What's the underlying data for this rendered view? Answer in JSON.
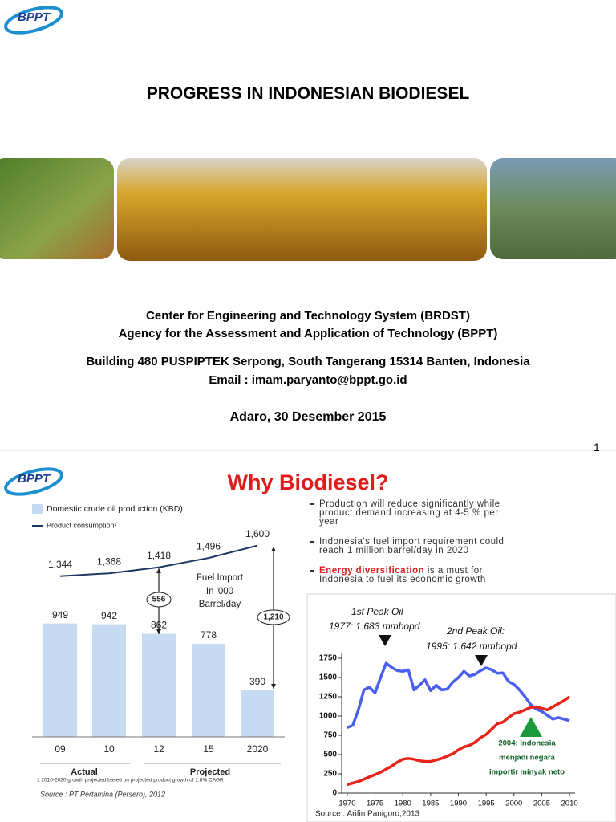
{
  "slide1": {
    "logo": "BPPT",
    "title": "PROGRESS IN INDONESIAN BIODIESEL",
    "lines": [
      "Center for Engineering and Technology System (BRDST)",
      "Agency for the Assessment and Application of Technology (BPPT)",
      "Building 480  PUSPIPTEK  Serpong, South Tangerang  15314 Banten, Indonesia",
      "Email : imam.paryanto@bppt.go.id"
    ],
    "date": "Adaro, 30 Desember 2015",
    "page_number": "1"
  },
  "slide2": {
    "logo": "BPPT",
    "title": "Why Biodiesel?",
    "bullets": [
      {
        "text": "Production will reduce significantly while product demand increasing at 4-5 % per year"
      },
      {
        "text": "Indonesia's fuel import requirement could reach 1 million barrel/day in 2020"
      },
      {
        "highlight": "Energy diversification",
        "text": "is a must for Indonesia to fuel its economic growth"
      }
    ]
  },
  "chart_data": [
    {
      "type": "bar",
      "categories": [
        "09",
        "10",
        "12",
        "15",
        "2020"
      ],
      "series": [
        {
          "name": "Domestic crude oil production (KBD)",
          "color": "#c6dbf2",
          "values": [
            949,
            942,
            862,
            778,
            390
          ]
        },
        {
          "name": "Product consumption¹",
          "type": "line",
          "color": "#1f3864",
          "values": [
            1344,
            1368,
            1418,
            1496,
            1600
          ],
          "value_labels": [
            "1,344",
            "1,368",
            "1,418",
            "1,496",
            "1,600"
          ]
        }
      ],
      "groups": [
        "Actual",
        "Projected"
      ],
      "annotations": [
        "556",
        "1,210",
        "Fuel Import",
        "In '000",
        "Barrel/day"
      ],
      "footnote": "1 2010-2020 growth projected based on projected product growth of 1.8% CAGR",
      "source": "Source : PT Pertamina (Persero), 2012"
    },
    {
      "type": "line",
      "x": [
        1970,
        1971,
        1972,
        1973,
        1974,
        1975,
        1976,
        1977,
        1978,
        1979,
        1980,
        1981,
        1982,
        1983,
        1984,
        1985,
        1986,
        1987,
        1988,
        1989,
        1990,
        1991,
        1992,
        1993,
        1994,
        1995,
        1996,
        1997,
        1998,
        1999,
        2000,
        2001,
        2002,
        2003,
        2004,
        2005,
        2006,
        2007,
        2008,
        2009,
        2010
      ],
      "series": [
        {
          "color": "#4a5ff0",
          "values": [
            850,
            880,
            1080,
            1340,
            1375,
            1300,
            1500,
            1685,
            1630,
            1590,
            1580,
            1600,
            1340,
            1400,
            1470,
            1330,
            1400,
            1340,
            1350,
            1440,
            1500,
            1580,
            1520,
            1540,
            1590,
            1625,
            1600,
            1555,
            1560,
            1450,
            1410,
            1340,
            1250,
            1150,
            1090,
            1060,
            1010,
            960,
            980,
            960,
            940
          ]
        },
        {
          "color": "#e8231a",
          "values": [
            110,
            130,
            150,
            180,
            210,
            240,
            270,
            310,
            350,
            400,
            440,
            450,
            440,
            420,
            410,
            410,
            430,
            450,
            480,
            510,
            560,
            600,
            620,
            660,
            720,
            760,
            830,
            900,
            920,
            980,
            1030,
            1050,
            1080,
            1110,
            1120,
            1100,
            1080,
            1120,
            1160,
            1200,
            1250
          ]
        }
      ],
      "xlim": [
        1969,
        2011
      ],
      "ylim": [
        0,
        1750
      ],
      "xticks": [
        1970,
        1975,
        1980,
        1985,
        1990,
        1995,
        2000,
        2005,
        2010
      ],
      "yticks": [
        0,
        250,
        500,
        750,
        1000,
        1250,
        1500,
        1750
      ],
      "annotations": [
        "1st Peak Oil",
        "1977: 1.683 mmbopd",
        "2nd Peak Oil:",
        "1995: 1.642 mmbopd",
        "2004: Indonesia",
        "menjadi negara",
        "importir minyak neto"
      ],
      "source": "Source : Arifin Panigoro,2013"
    }
  ]
}
